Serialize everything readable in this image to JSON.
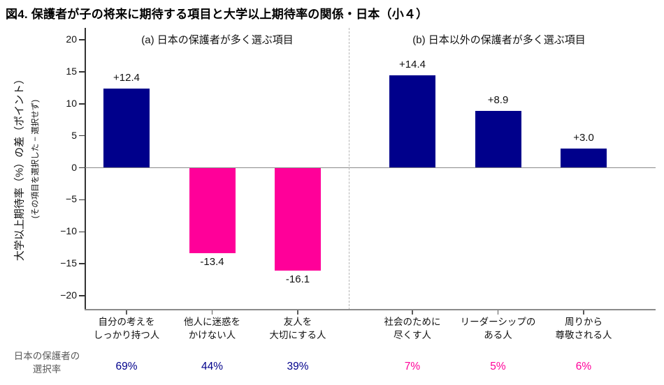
{
  "chart_data": {
    "type": "bar",
    "title": "図4. 保護者が子の将来に期待する項目と大学以上期待率の関係・日本（小４）",
    "ylabel": "大学以上期待率（%）の差（ポイント）",
    "ylabel_sub": "(その項目を選択した − 選択せず)",
    "ylim": [
      -20,
      20
    ],
    "y_ticks": [
      20,
      15,
      10,
      5,
      0,
      -5,
      -10,
      -15,
      -20
    ],
    "grid": "zero-line only",
    "legend": "none",
    "colors": {
      "navy": "#00008B",
      "pink": "#FF0099",
      "axis_gray": "#8a8a8a",
      "label_gray": "#595959"
    },
    "panels": [
      {
        "id": "a",
        "header": "(a) 日本の保護者が多く選ぶ項目",
        "bars": [
          {
            "category_lines": [
              "自分の考えを",
              "しっかり持つ人"
            ],
            "value": 12.4,
            "value_label": "+12.4",
            "color": "navy",
            "selection_rate": "69%",
            "selection_rate_color": "navy"
          },
          {
            "category_lines": [
              "他人に迷惑を",
              "かけない人"
            ],
            "value": -13.4,
            "value_label": "-13.4",
            "color": "pink",
            "selection_rate": "44%",
            "selection_rate_color": "navy"
          },
          {
            "category_lines": [
              "友人を",
              "大切にする人"
            ],
            "value": -16.1,
            "value_label": "-16.1",
            "color": "pink",
            "selection_rate": "39%",
            "selection_rate_color": "navy"
          }
        ]
      },
      {
        "id": "b",
        "header": "(b) 日本以外の保護者が多く選ぶ項目",
        "bars": [
          {
            "category_lines": [
              "社会のために",
              "尽くす人"
            ],
            "value": 14.4,
            "value_label": "+14.4",
            "color": "navy",
            "selection_rate": "7%",
            "selection_rate_color": "pink"
          },
          {
            "category_lines": [
              "リーダーシップの",
              "ある人"
            ],
            "value": 8.9,
            "value_label": "+8.9",
            "color": "navy",
            "selection_rate": "5%",
            "selection_rate_color": "pink"
          },
          {
            "category_lines": [
              "周りから",
              "尊敬される人"
            ],
            "value": 3.0,
            "value_label": "+3.0",
            "color": "navy",
            "selection_rate": "6%",
            "selection_rate_color": "pink"
          }
        ]
      }
    ],
    "footer_row_label_lines": [
      "日本の保護者の",
      "選択率"
    ]
  }
}
